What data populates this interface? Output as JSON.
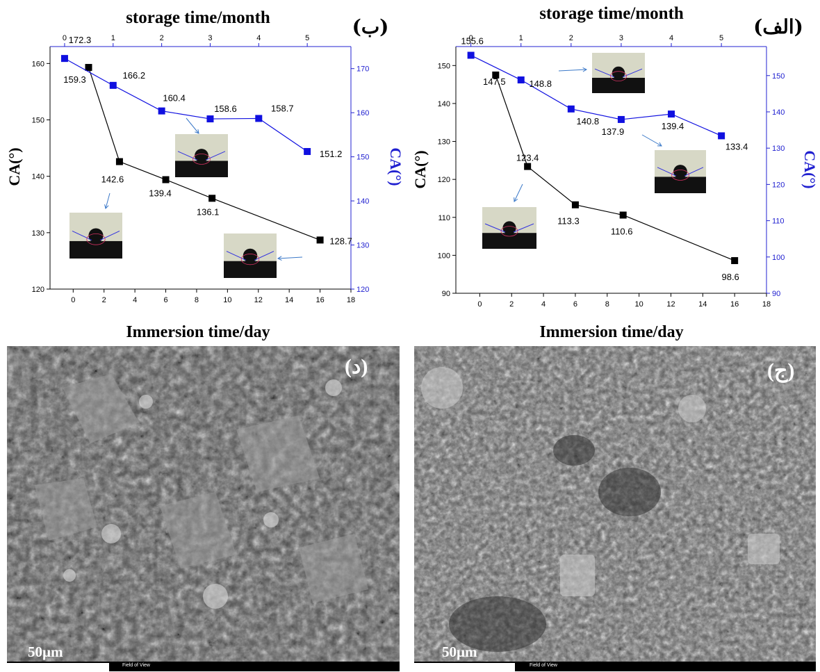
{
  "colors": {
    "black_series": "#000000",
    "blue_series": "#1010e0",
    "blue_axis": "#2020d0",
    "annotation_arrow": "#3a78c8"
  },
  "chart_data": [
    {
      "type": "line",
      "panel_label": "(ب)",
      "top_axis_title": "storage time/month",
      "bottom_axis_title": "Immersion time/day",
      "left_axis_title": "CA(°)",
      "right_axis_title": "CA(°)",
      "x_bottom": {
        "min": -1.5,
        "max": 18,
        "ticks": [
          0,
          2,
          4,
          6,
          8,
          10,
          12,
          14,
          16,
          18
        ]
      },
      "x_top": {
        "min": -0.3,
        "max": 5.9,
        "ticks": [
          0,
          1,
          2,
          3,
          4,
          5
        ]
      },
      "y_left": {
        "min": 120,
        "max": 163,
        "ticks": [
          120,
          130,
          140,
          150,
          160
        ]
      },
      "y_right": {
        "min": 120,
        "max": 175,
        "ticks": [
          120,
          130,
          140,
          150,
          160,
          170
        ]
      },
      "series": [
        {
          "color_key": "black_series",
          "axis": "bottom-left",
          "x": [
            1,
            3,
            6,
            9,
            16
          ],
          "y": [
            159.3,
            142.6,
            139.4,
            136.1,
            128.7
          ],
          "labels": [
            "159.3",
            "142.6",
            "139.4",
            "136.1",
            "128.7"
          ]
        },
        {
          "color_key": "blue_series",
          "axis": "top-right",
          "x": [
            0,
            1,
            2,
            3,
            4,
            5
          ],
          "y": [
            172.3,
            166.2,
            160.4,
            158.6,
            158.7,
            151.2
          ],
          "labels": [
            "172.3",
            "166.2",
            "160.4",
            "158.6",
            "158.7",
            "151.2"
          ]
        }
      ]
    },
    {
      "type": "line",
      "panel_label": "(الف)",
      "top_axis_title": "storage time/month",
      "bottom_axis_title": "Immersion time/day",
      "left_axis_title": "CA(°)",
      "right_axis_title": "CA(°)",
      "x_bottom": {
        "min": -1.5,
        "max": 18,
        "ticks": [
          0,
          2,
          4,
          6,
          8,
          10,
          12,
          14,
          16,
          18
        ]
      },
      "x_top": {
        "min": -0.3,
        "max": 5.9,
        "ticks": [
          0,
          1,
          2,
          3,
          4,
          5
        ]
      },
      "y_left": {
        "min": 90,
        "max": 155,
        "ticks": [
          90,
          100,
          110,
          120,
          130,
          140,
          150
        ]
      },
      "y_right": {
        "min": 90,
        "max": 158,
        "ticks": [
          90,
          100,
          110,
          120,
          130,
          140,
          150
        ]
      },
      "series": [
        {
          "color_key": "black_series",
          "axis": "bottom-left",
          "x": [
            1,
            3,
            6,
            9,
            16
          ],
          "y": [
            147.5,
            123.4,
            113.3,
            110.6,
            98.6
          ],
          "labels": [
            "147.5",
            "123.4",
            "113.3",
            "110.6",
            "98.6"
          ]
        },
        {
          "color_key": "blue_series",
          "axis": "top-right",
          "x": [
            0,
            1,
            2,
            3,
            4,
            5
          ],
          "y": [
            155.6,
            148.8,
            140.8,
            137.9,
            139.4,
            133.4
          ],
          "labels": [
            "155.6",
            "148.8",
            "140.8",
            "137.9",
            "139.4",
            "133.4"
          ]
        }
      ]
    }
  ],
  "micrographs": [
    {
      "panel_label": "(د)",
      "scale_bar": "50µm",
      "footer_text": "Field of View"
    },
    {
      "panel_label": "(ج)",
      "scale_bar": "50µm",
      "footer_text": "Field of View"
    }
  ]
}
